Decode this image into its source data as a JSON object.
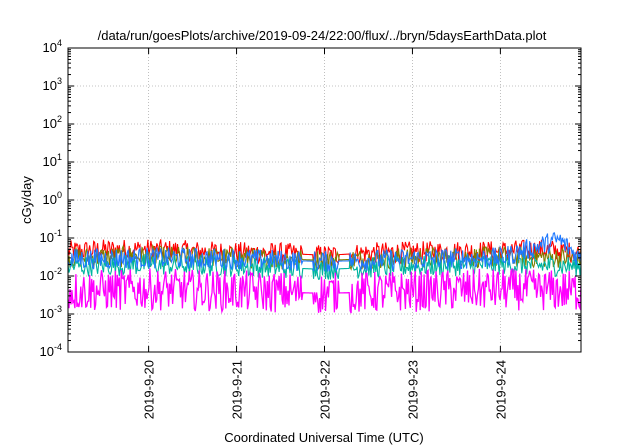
{
  "chart_data": {
    "type": "line",
    "title": "/data/run/goesPlots/archive/2019-09-24/22:00/flux/../bryn/5daysEarthData.plot",
    "xlabel": "Coordinated Universal Time (UTC)",
    "ylabel": "cGy/day",
    "yscale": "log",
    "ylim": [
      0.0001,
      10000
    ],
    "xlim": [
      "2019-09-19 02:00",
      "2019-09-24 22:00"
    ],
    "grid": true,
    "x_ticks": [
      {
        "x": "2019-09-20 00:00",
        "label": "2019-9-20"
      },
      {
        "x": "2019-09-21 00:00",
        "label": "2019-9-21"
      },
      {
        "x": "2019-09-22 00:00",
        "label": "2019-9-22"
      },
      {
        "x": "2019-09-23 00:00",
        "label": "2019-9-23"
      },
      {
        "x": "2019-09-24 00:00",
        "label": "2019-9-24"
      }
    ],
    "y_ticks": [
      {
        "value": 0.0001,
        "base": "10",
        "exp": "-4"
      },
      {
        "value": 0.001,
        "base": "10",
        "exp": "-3"
      },
      {
        "value": 0.01,
        "base": "10",
        "exp": "-2"
      },
      {
        "value": 0.1,
        "base": "10",
        "exp": "-1"
      },
      {
        "value": 1,
        "base": "10",
        "exp": "0"
      },
      {
        "value": 10,
        "base": "10",
        "exp": "1"
      },
      {
        "value": 100,
        "base": "10",
        "exp": "2"
      },
      {
        "value": 1000,
        "base": "10",
        "exp": "3"
      },
      {
        "value": 10000,
        "base": "10",
        "exp": "4"
      }
    ],
    "gaps": [
      [
        "2019-09-21 18:00",
        "2019-09-21 21:00"
      ],
      [
        "2019-09-22 04:00",
        "2019-09-22 07:00"
      ]
    ],
    "series": [
      {
        "color": "#ff0000",
        "values": [
          [
            "2019-09-19 02:00",
            0.045
          ],
          [
            "2019-09-19 14:00",
            0.05
          ],
          [
            "2019-09-20 00:00",
            0.05
          ],
          [
            "2019-09-20 12:00",
            0.045
          ],
          [
            "2019-09-21 00:00",
            0.042
          ],
          [
            "2019-09-21 12:00",
            0.04
          ],
          [
            "2019-09-22 00:00",
            0.035
          ],
          [
            "2019-09-22 12:00",
            0.04
          ],
          [
            "2019-09-23 00:00",
            0.043
          ],
          [
            "2019-09-23 12:00",
            0.045
          ],
          [
            "2019-09-24 00:00",
            0.045
          ],
          [
            "2019-09-24 12:00",
            0.05
          ],
          [
            "2019-09-24 22:00",
            0.04
          ]
        ]
      },
      {
        "color": "#7f7f00",
        "values": [
          [
            "2019-09-19 02:00",
            0.03
          ],
          [
            "2019-09-20 00:00",
            0.033
          ],
          [
            "2019-09-21 00:00",
            0.03
          ],
          [
            "2019-09-22 00:00",
            0.026
          ],
          [
            "2019-09-23 00:00",
            0.03
          ],
          [
            "2019-09-24 00:00",
            0.032
          ],
          [
            "2019-09-24 22:00",
            0.03
          ]
        ]
      },
      {
        "color": "#00b4a0",
        "values": [
          [
            "2019-09-19 02:00",
            0.018
          ],
          [
            "2019-09-20 00:00",
            0.02
          ],
          [
            "2019-09-21 00:00",
            0.018
          ],
          [
            "2019-09-22 00:00",
            0.015
          ],
          [
            "2019-09-23 00:00",
            0.018
          ],
          [
            "2019-09-24 00:00",
            0.02
          ],
          [
            "2019-09-24 22:00",
            0.018
          ]
        ]
      },
      {
        "color": "#1e78ff",
        "values": [
          [
            "2019-09-19 02:00",
            0.028
          ],
          [
            "2019-09-20 00:00",
            0.03
          ],
          [
            "2019-09-21 00:00",
            0.028
          ],
          [
            "2019-09-22 00:00",
            0.024
          ],
          [
            "2019-09-23 00:00",
            0.028
          ],
          [
            "2019-09-24 00:00",
            0.03
          ],
          [
            "2019-09-24 16:00",
            0.09
          ],
          [
            "2019-09-24 22:00",
            0.028
          ]
        ]
      },
      {
        "color": "#ff00ff",
        "values": [
          [
            "2019-09-19 02:00",
            0.004
          ],
          [
            "2019-09-20 00:00",
            0.0045
          ],
          [
            "2019-09-21 00:00",
            0.004
          ],
          [
            "2019-09-22 00:00",
            0.0035
          ],
          [
            "2019-09-23 00:00",
            0.004
          ],
          [
            "2019-09-24 00:00",
            0.0045
          ],
          [
            "2019-09-24 22:00",
            0.004
          ]
        ]
      }
    ]
  }
}
